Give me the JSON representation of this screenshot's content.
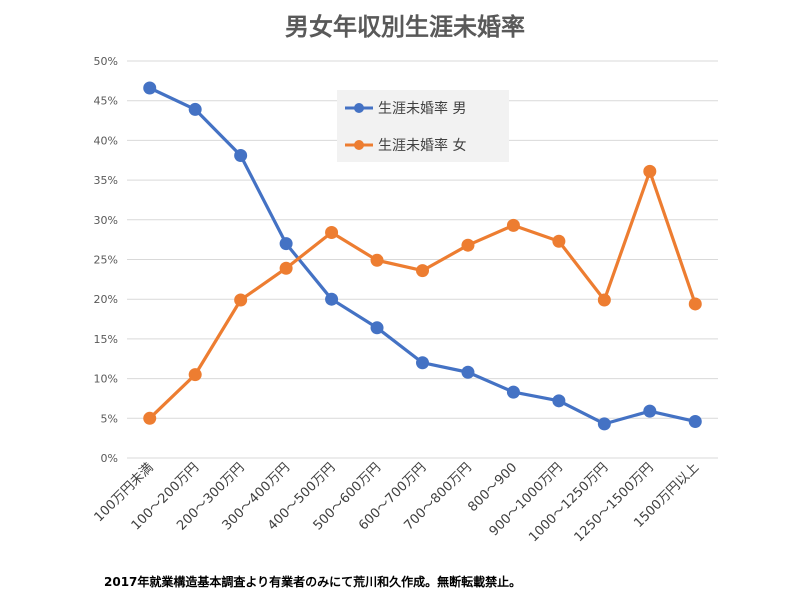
{
  "chart_data": {
    "type": "line",
    "title": "男女年収別生涯未婚率",
    "categories": [
      "100万円未満",
      "100～200万円",
      "200～300万円",
      "300～400万円",
      "400～500万円",
      "500～600万円",
      "600～700万円",
      "700～800万円",
      "800～900",
      "900～1000万円",
      "1000～1250万円",
      "1250～1500万円",
      "1500万円以上"
    ],
    "series": [
      {
        "name": "生涯未婚率 男",
        "color": "#4472C4",
        "values": [
          46.6,
          43.9,
          38.1,
          27.0,
          20.0,
          16.4,
          12.0,
          10.8,
          8.3,
          7.2,
          4.3,
          5.9,
          4.6
        ]
      },
      {
        "name": "生涯未婚率 女",
        "color": "#ED7D31",
        "values": [
          5.0,
          10.5,
          19.9,
          23.9,
          28.4,
          24.9,
          23.6,
          26.8,
          29.3,
          27.3,
          19.9,
          36.1,
          19.4
        ]
      }
    ],
    "ylim": [
      0,
      50
    ],
    "yticks": [
      "0%",
      "5%",
      "10%",
      "15%",
      "20%",
      "25%",
      "30%",
      "35%",
      "40%",
      "45%",
      "50%"
    ],
    "grid": true,
    "legend_position": "top-center"
  },
  "footnote": "2017年就業構造基本調査より有業者のみにて荒川和久作成。無断転載禁止。"
}
